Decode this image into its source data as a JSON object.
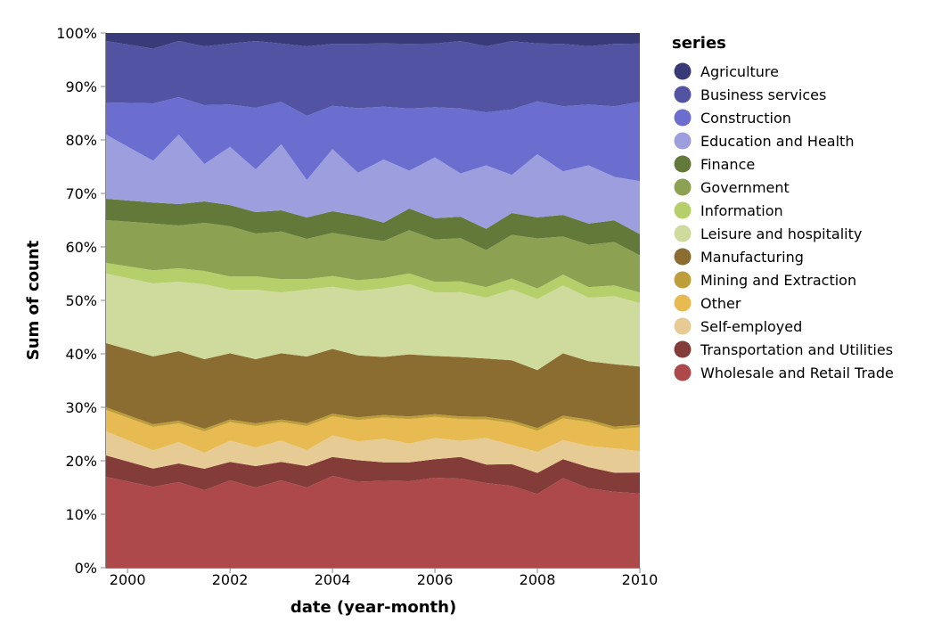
{
  "chart_data": {
    "type": "area",
    "stacking": "normalized",
    "xlabel": "date (year-month)",
    "ylabel": "Sum of count",
    "x_ticks": [
      "2000",
      "2002",
      "2004",
      "2006",
      "2008",
      "2010"
    ],
    "y_ticks": [
      "0%",
      "10%",
      "20%",
      "30%",
      "40%",
      "50%",
      "60%",
      "70%",
      "80%",
      "90%",
      "100%"
    ],
    "ylim": [
      0,
      1
    ],
    "x_start_year": 1999.58,
    "x_end_year": 2010.0,
    "dates": [
      "2000-01",
      "2000-07",
      "2001-01",
      "2001-07",
      "2002-01",
      "2002-07",
      "2003-01",
      "2003-07",
      "2004-01",
      "2004-07",
      "2005-01",
      "2005-07",
      "2006-01",
      "2006-07",
      "2007-01",
      "2007-07",
      "2008-01",
      "2008-07",
      "2009-01",
      "2009-07",
      "2010-01"
    ],
    "legend": {
      "title": "series",
      "position": "right",
      "entries": [
        {
          "label": "Agriculture",
          "color": "#393b79"
        },
        {
          "label": "Business services",
          "color": "#5254a3"
        },
        {
          "label": "Construction",
          "color": "#6b6ecf"
        },
        {
          "label": "Education and Health",
          "color": "#9c9ede"
        },
        {
          "label": "Finance",
          "color": "#637939"
        },
        {
          "label": "Government",
          "color": "#8ca252"
        },
        {
          "label": "Information",
          "color": "#b5cf6b"
        },
        {
          "label": "Leisure and hospitality",
          "color": "#cedb9c"
        },
        {
          "label": "Manufacturing",
          "color": "#8c6d31"
        },
        {
          "label": "Mining and Extraction",
          "color": "#bd9e39"
        },
        {
          "label": "Other",
          "color": "#e7ba52"
        },
        {
          "label": "Self-employed",
          "color": "#e7cb94"
        },
        {
          "label": "Transportation and Utilities",
          "color": "#843c39"
        },
        {
          "label": "Wholesale and Retail Trade",
          "color": "#ad494a"
        }
      ]
    },
    "series": [
      {
        "name": "Wholesale and Retail Trade",
        "color": "#ad494a",
        "values": [
          17,
          15.5,
          16,
          14.5,
          16.5,
          15,
          16.5,
          15,
          17,
          16,
          16.5,
          16,
          17,
          16.5,
          16,
          15,
          14,
          16.5,
          15,
          14,
          14
        ]
      },
      {
        "name": "Transportation and Utilities",
        "color": "#843c39",
        "values": [
          4,
          3.5,
          3.5,
          4,
          3.5,
          4,
          3.5,
          4,
          3.5,
          4,
          3.5,
          3.5,
          3.5,
          4,
          3.5,
          4,
          4,
          3.5,
          4,
          3.5,
          4
        ]
      },
      {
        "name": "Self-employed",
        "color": "#e7cb94",
        "values": [
          4.5,
          3.5,
          4,
          3,
          4,
          3.5,
          4,
          3,
          4,
          3.5,
          4.5,
          3.5,
          4,
          3,
          5,
          3.5,
          4,
          3.5,
          4,
          4.5,
          4
        ]
      },
      {
        "name": "Other",
        "color": "#e7ba52",
        "values": [
          4,
          4.5,
          3.5,
          4,
          3.5,
          4,
          3.5,
          4.5,
          3.5,
          4,
          4,
          4.5,
          4,
          4,
          3.5,
          4,
          4,
          4,
          4.5,
          3.5,
          4.5
        ]
      },
      {
        "name": "Mining and Extraction",
        "color": "#bd9e39",
        "values": [
          0.5,
          0.5,
          0.5,
          0.5,
          0.5,
          0.5,
          0.5,
          0.5,
          0.5,
          0.5,
          0.5,
          0.5,
          0.5,
          0.5,
          0.5,
          0.5,
          0.5,
          0.5,
          0.5,
          0.5,
          0.5
        ]
      },
      {
        "name": "Manufacturing",
        "color": "#8c6d31",
        "values": [
          12,
          13,
          13,
          13,
          12.5,
          12,
          12.5,
          12.5,
          12,
          11.5,
          11,
          11.5,
          11,
          11,
          11,
          11,
          11,
          11.5,
          11,
          11.5,
          11
        ]
      },
      {
        "name": "Leisure and hospitality",
        "color": "#cedb9c",
        "values": [
          13,
          14,
          13,
          14,
          12,
          13,
          11.5,
          12.5,
          11.5,
          12,
          13,
          13,
          12,
          12,
          11.5,
          13,
          13.5,
          12.5,
          12,
          12.5,
          12
        ]
      },
      {
        "name": "Information",
        "color": "#b5cf6b",
        "values": [
          2,
          2.5,
          2.5,
          2.5,
          2.5,
          2.5,
          2.5,
          2,
          2,
          2,
          2,
          2,
          2,
          2,
          2,
          2,
          2,
          2,
          2,
          2,
          2
        ]
      },
      {
        "name": "Government",
        "color": "#8ca252",
        "values": [
          8,
          9,
          8,
          9,
          9.5,
          8,
          9,
          7.5,
          8,
          8,
          7,
          8,
          8,
          8,
          7,
          8,
          9.5,
          7,
          8,
          8,
          7
        ]
      },
      {
        "name": "Finance",
        "color": "#637939",
        "values": [
          4,
          4,
          4,
          4,
          4,
          4,
          4,
          4,
          4,
          4,
          3.5,
          4,
          4,
          4,
          4,
          4,
          4,
          4,
          4,
          4,
          4
        ]
      },
      {
        "name": "Education and Health",
        "color": "#9c9ede",
        "values": [
          12,
          8,
          13,
          7,
          11,
          8,
          12.5,
          7,
          11.5,
          8,
          12,
          7,
          11.5,
          8,
          12,
          7,
          12,
          8,
          11,
          8,
          10
        ]
      },
      {
        "name": "Construction",
        "color": "#6b6ecf",
        "values": [
          6,
          11,
          7,
          11,
          8,
          11.5,
          8,
          12,
          8,
          12,
          10,
          11.5,
          9.5,
          12,
          10,
          12,
          10,
          12,
          11.5,
          13,
          15
        ]
      },
      {
        "name": "Business services",
        "color": "#5254a3",
        "values": [
          11.5,
          10.5,
          10.5,
          11,
          11.5,
          12.5,
          11,
          13,
          11.5,
          12,
          12,
          12,
          12,
          12.5,
          12.5,
          12.5,
          11,
          11.5,
          11,
          11.5,
          11
        ]
      },
      {
        "name": "Agriculture",
        "color": "#393b79",
        "values": [
          1.5,
          3,
          1.5,
          2.5,
          2,
          1.5,
          2,
          2.5,
          2,
          2,
          2,
          2,
          2,
          1.5,
          2.5,
          1.5,
          2,
          2,
          2.5,
          2,
          2
        ]
      }
    ]
  }
}
